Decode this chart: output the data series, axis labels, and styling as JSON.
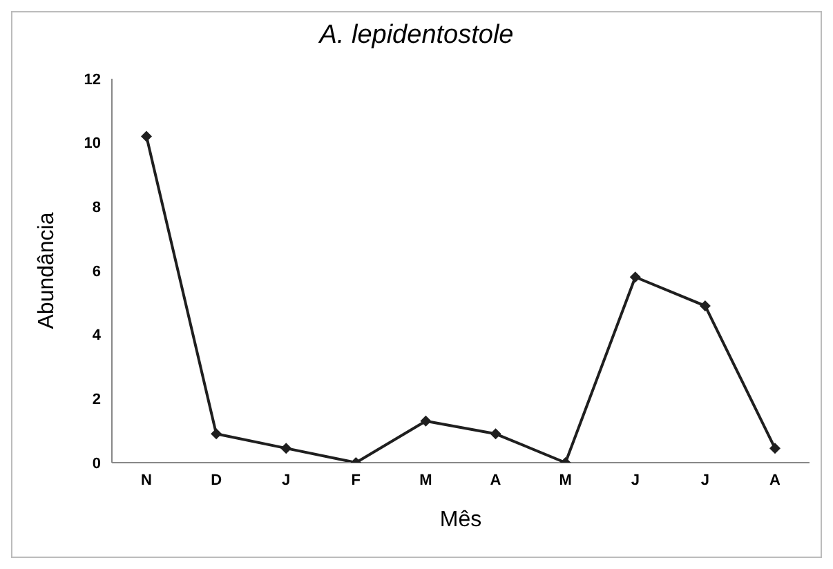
{
  "chart_data": {
    "type": "line",
    "title": "A. lepidentostole",
    "xlabel": "Mês",
    "ylabel": "Abundância",
    "categories": [
      "N",
      "D",
      "J",
      "F",
      "M",
      "A",
      "M",
      "J",
      "J",
      "A"
    ],
    "series": [
      {
        "color": "#1f1f1f",
        "values": [
          10.2,
          0.9,
          0.45,
          0,
          1.3,
          0.9,
          0,
          5.8,
          4.9,
          0.45
        ]
      }
    ],
    "ylim": [
      0,
      12
    ],
    "yticks": [
      0,
      2,
      4,
      6,
      8,
      10,
      12
    ],
    "grid": false,
    "legend": false,
    "marker": "diamond",
    "line_style": "solid"
  }
}
